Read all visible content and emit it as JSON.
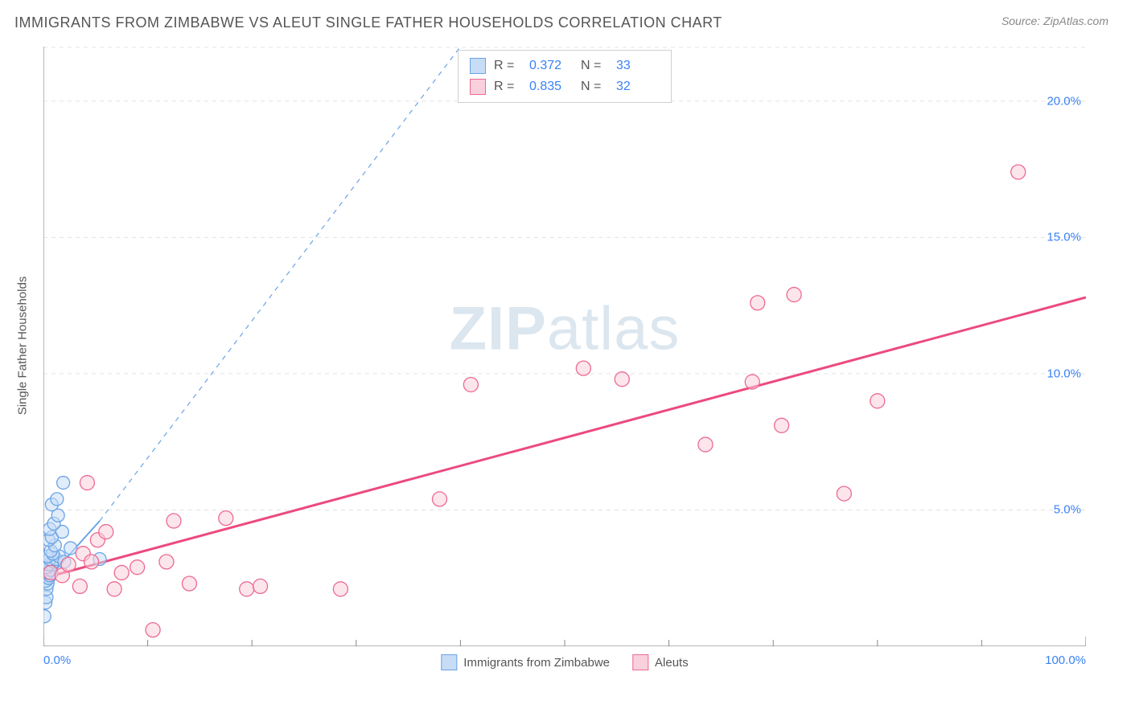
{
  "header": {
    "title": "IMMIGRANTS FROM ZIMBABWE VS ALEUT SINGLE FATHER HOUSEHOLDS CORRELATION CHART",
    "source_prefix": "Source: ",
    "source_name": "ZipAtlas.com"
  },
  "watermark": {
    "bold": "ZIP",
    "light": "atlas"
  },
  "chart": {
    "type": "scatter",
    "y_axis_label": "Single Father Households",
    "x_range": [
      0,
      100
    ],
    "y_range": [
      0,
      22
    ],
    "background_color": "#ffffff",
    "grid_color": "#e3e3e3",
    "axis_color": "#888888",
    "tick_color": "#888888",
    "y_ticks": [
      {
        "v": 5,
        "label": "5.0%"
      },
      {
        "v": 10,
        "label": "10.0%"
      },
      {
        "v": 15,
        "label": "15.0%"
      },
      {
        "v": 20,
        "label": "20.0%"
      }
    ],
    "x_ticks_labeled": [
      {
        "v": 0,
        "label": "0.0%",
        "align": "left"
      },
      {
        "v": 100,
        "label": "100.0%",
        "align": "right"
      }
    ],
    "x_ticks_minor": [
      10,
      20,
      30,
      40,
      50,
      60,
      70,
      80,
      90
    ],
    "series": [
      {
        "name": "Immigrants from Zimbabwe",
        "color_fill": "#c7dcf5",
        "color_stroke": "#6aa4e6",
        "marker_r": 8,
        "R_label": "R =",
        "R_value": "0.372",
        "N_label": "N =",
        "N_value": "33",
        "trend": {
          "x1": 0,
          "y1": 2.3,
          "x2": 5.4,
          "y2": 4.6,
          "dash_extend_to_x": 40,
          "dash_extend_to_y": 22,
          "stroke": "#6aa4e6",
          "width": 2
        },
        "points": [
          [
            0.1,
            1.1
          ],
          [
            0.2,
            1.6
          ],
          [
            0.3,
            1.8
          ],
          [
            0.3,
            2.1
          ],
          [
            0.4,
            2.3
          ],
          [
            0.2,
            2.4
          ],
          [
            0.5,
            2.5
          ],
          [
            0.6,
            2.6
          ],
          [
            0.4,
            2.7
          ],
          [
            0.7,
            2.8
          ],
          [
            0.3,
            2.9
          ],
          [
            0.8,
            3.0
          ],
          [
            0.5,
            3.0
          ],
          [
            1.0,
            3.1
          ],
          [
            0.6,
            3.2
          ],
          [
            1.2,
            3.2
          ],
          [
            0.4,
            3.3
          ],
          [
            1.5,
            3.3
          ],
          [
            0.9,
            3.4
          ],
          [
            2.0,
            3.1
          ],
          [
            0.7,
            3.5
          ],
          [
            1.1,
            3.7
          ],
          [
            2.6,
            3.6
          ],
          [
            5.4,
            3.2
          ],
          [
            0.5,
            3.9
          ],
          [
            0.8,
            4.0
          ],
          [
            1.8,
            4.2
          ],
          [
            0.6,
            4.3
          ],
          [
            1.0,
            4.5
          ],
          [
            1.4,
            4.8
          ],
          [
            0.8,
            5.2
          ],
          [
            1.3,
            5.4
          ],
          [
            1.9,
            6.0
          ]
        ]
      },
      {
        "name": "Aleuts",
        "color_fill": "#f9d0db",
        "color_stroke": "#ec6a94",
        "marker_r": 9,
        "R_label": "R =",
        "R_value": "0.835",
        "N_label": "N =",
        "N_value": "32",
        "trend": {
          "x1": 0,
          "y1": 2.5,
          "x2": 100,
          "y2": 12.8,
          "stroke": "#ec4a7e",
          "width": 3
        },
        "points": [
          [
            0.7,
            2.7
          ],
          [
            1.8,
            2.6
          ],
          [
            2.4,
            3.0
          ],
          [
            3.5,
            2.2
          ],
          [
            3.8,
            3.4
          ],
          [
            4.6,
            3.1
          ],
          [
            5.2,
            3.9
          ],
          [
            6.0,
            4.2
          ],
          [
            6.8,
            2.1
          ],
          [
            7.5,
            2.7
          ],
          [
            9.0,
            2.9
          ],
          [
            10.5,
            0.6
          ],
          [
            11.8,
            3.1
          ],
          [
            12.5,
            4.6
          ],
          [
            14.0,
            2.3
          ],
          [
            17.5,
            4.7
          ],
          [
            19.5,
            2.1
          ],
          [
            20.8,
            2.2
          ],
          [
            28.5,
            2.1
          ],
          [
            38.0,
            5.4
          ],
          [
            41.0,
            9.6
          ],
          [
            51.8,
            10.2
          ],
          [
            55.5,
            9.8
          ],
          [
            63.5,
            7.4
          ],
          [
            68.0,
            9.7
          ],
          [
            68.5,
            12.6
          ],
          [
            70.8,
            8.1
          ],
          [
            72.0,
            12.9
          ],
          [
            76.8,
            5.6
          ],
          [
            80.0,
            9.0
          ],
          [
            93.5,
            17.4
          ],
          [
            4.2,
            6.0
          ]
        ]
      }
    ],
    "legend_bottom": [
      {
        "swatch_fill": "#c7dcf5",
        "swatch_stroke": "#6aa4e6",
        "label": "Immigrants from Zimbabwe"
      },
      {
        "swatch_fill": "#f9d0db",
        "swatch_stroke": "#ec6a94",
        "label": "Aleuts"
      }
    ]
  }
}
